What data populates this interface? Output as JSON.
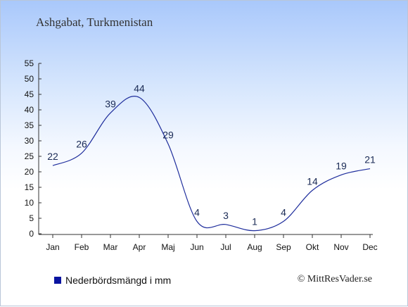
{
  "location": "Ashgabat, Turkmenistan",
  "legend": {
    "label": "Nederbördsmängd i mm",
    "color": "#0a14a0"
  },
  "copyright": "© MittResVader.se",
  "colors": {
    "line": "#1e2d9c",
    "axis": "#333333"
  },
  "chart_data": {
    "type": "line",
    "categories": [
      "Jan",
      "Feb",
      "Mar",
      "Apr",
      "Maj",
      "Jun",
      "Jul",
      "Aug",
      "Sep",
      "Okt",
      "Nov",
      "Dec"
    ],
    "series": [
      {
        "name": "Nederbördsmängd i mm",
        "values": [
          22,
          26,
          39,
          44,
          29,
          4,
          3,
          1,
          4,
          14,
          19,
          21
        ]
      }
    ],
    "yticks": [
      0,
      5,
      10,
      15,
      20,
      25,
      30,
      35,
      40,
      45,
      50,
      55
    ],
    "ylim": [
      0,
      55
    ],
    "grid": false,
    "legend_position": "bottom-left"
  }
}
